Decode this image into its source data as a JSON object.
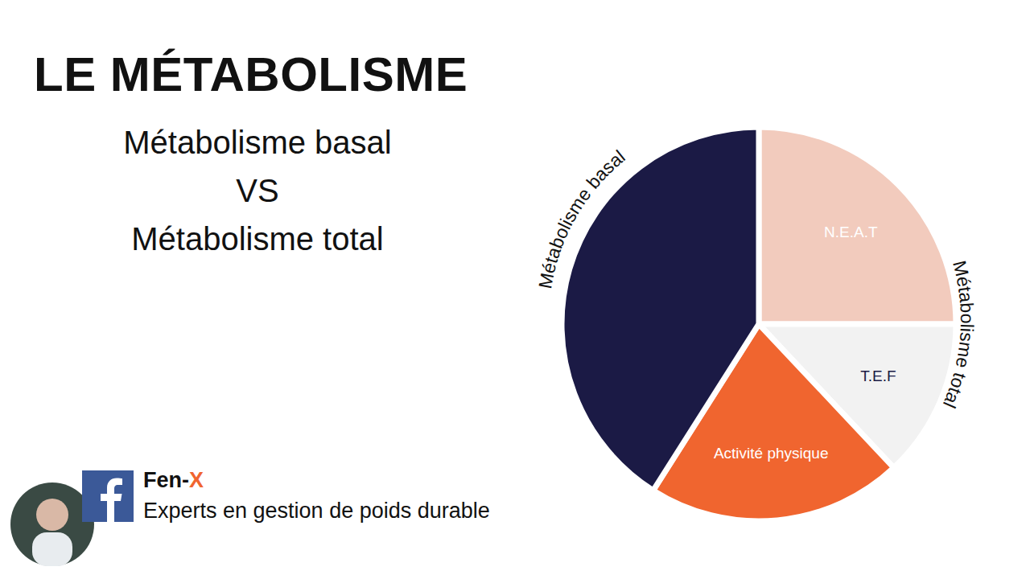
{
  "header": {
    "title": "LE MÉTABOLISME",
    "subtitle_lines": [
      "Métabolisme basal",
      "VS",
      "Métabolisme total"
    ]
  },
  "footer": {
    "brand": "Fen-X",
    "tagline": "Experts en gestion de poids durable"
  },
  "chart_data": {
    "type": "pie",
    "categories": [
      "N.E.A.T",
      "T.E.F",
      "Activité physique",
      "Métabolisme basal"
    ],
    "values": [
      25,
      13,
      21,
      41
    ],
    "colors": [
      "#f2cbbd",
      "#f2f2f2",
      "#f0652f",
      "#1b1a45"
    ],
    "annotations": [
      "Métabolisme basal",
      "Métabolisme total"
    ]
  }
}
